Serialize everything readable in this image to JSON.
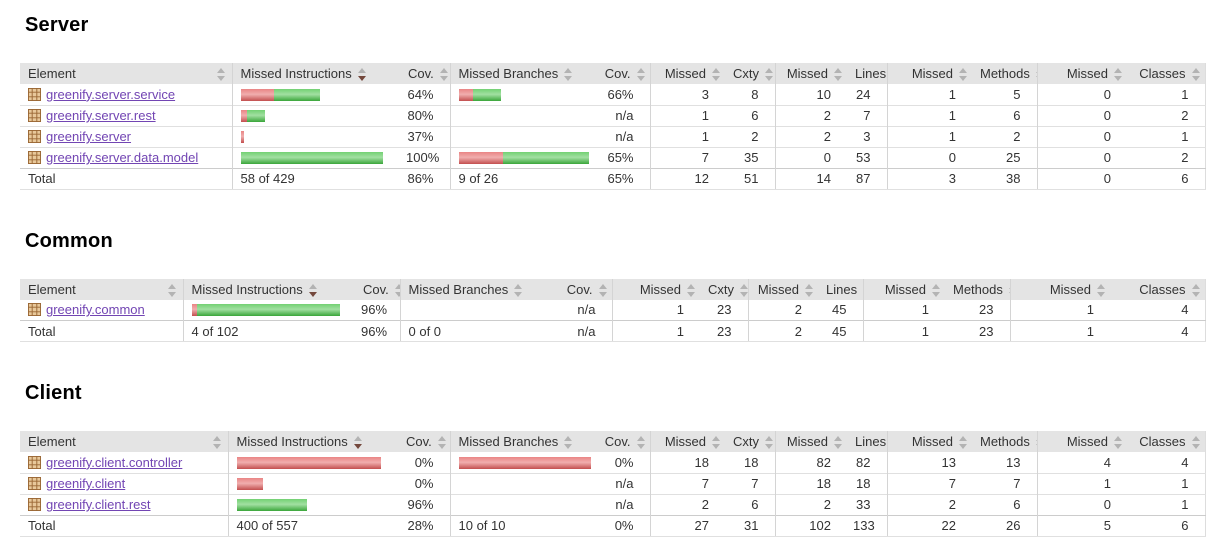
{
  "colors": {
    "header_bg": "#e4e4e4",
    "link": "#7245b3",
    "bar_red": "#e25c5c",
    "bar_green": "#44c144"
  },
  "columns": [
    "Element",
    "Missed Instructions",
    "Cov.",
    "Missed Branches",
    "Cov.",
    "Missed",
    "Cxty",
    "Missed",
    "Lines",
    "Missed",
    "Methods",
    "Missed",
    "Classes"
  ],
  "sections": [
    {
      "title": "Server",
      "sort": {
        "column": "Missed Instructions",
        "direction": "desc"
      },
      "rows": [
        {
          "name": "greenify.server.service",
          "instr_bar": {
            "red": 33,
            "green": 46
          },
          "instr_cov": "64%",
          "branch_bar": {
            "red": 14,
            "green": 28
          },
          "branch_cov": "66%",
          "missed_cxty": 3,
          "cxty": 8,
          "missed_lines": 10,
          "lines": 24,
          "missed_methods": 1,
          "methods": 5,
          "missed_classes": 0,
          "classes": 1
        },
        {
          "name": "greenify.server.rest",
          "instr_bar": {
            "red": 6,
            "green": 18
          },
          "instr_cov": "80%",
          "branch_cov": "n/a",
          "missed_cxty": 1,
          "cxty": 6,
          "missed_lines": 2,
          "lines": 7,
          "missed_methods": 1,
          "methods": 6,
          "missed_classes": 0,
          "classes": 2
        },
        {
          "name": "greenify.server",
          "instr_bar": {
            "red": 3,
            "green": 0
          },
          "instr_cov": "37%",
          "branch_cov": "n/a",
          "missed_cxty": 1,
          "cxty": 2,
          "missed_lines": 2,
          "lines": 3,
          "missed_methods": 1,
          "methods": 2,
          "missed_classes": 0,
          "classes": 1
        },
        {
          "name": "greenify.server.data.model",
          "instr_bar": {
            "red": 0,
            "green": 142
          },
          "instr_cov": "100%",
          "branch_bar": {
            "red": 47,
            "green": 92
          },
          "branch_cov": "65%",
          "missed_cxty": 7,
          "cxty": 35,
          "missed_lines": 0,
          "lines": 53,
          "missed_methods": 0,
          "methods": 25,
          "missed_classes": 0,
          "classes": 2
        }
      ],
      "total": {
        "label": "Total",
        "instructions": "58 of 429",
        "instr_cov": "86%",
        "branches": "9 of 26",
        "branch_cov": "65%",
        "missed_cxty": 12,
        "cxty": 51,
        "missed_lines": 14,
        "lines": 87,
        "missed_methods": 3,
        "methods": 38,
        "missed_classes": 0,
        "classes": 6
      }
    },
    {
      "title": "Common",
      "sort": {
        "column": "Missed Instructions",
        "direction": "desc"
      },
      "rows": [
        {
          "name": "greenify.common",
          "instr_bar": {
            "red": 5,
            "green": 143
          },
          "instr_cov": "96%",
          "branch_cov": "n/a",
          "missed_cxty": 1,
          "cxty": 23,
          "missed_lines": 2,
          "lines": 45,
          "missed_methods": 1,
          "methods": 23,
          "missed_classes": 1,
          "classes": 4
        }
      ],
      "total": {
        "label": "Total",
        "instructions": "4 of 102",
        "instr_cov": "96%",
        "branches": "0 of 0",
        "branch_cov": "n/a",
        "missed_cxty": 1,
        "cxty": 23,
        "missed_lines": 2,
        "lines": 45,
        "missed_methods": 1,
        "methods": 23,
        "missed_classes": 1,
        "classes": 4
      }
    },
    {
      "title": "Client",
      "sort": {
        "column": "Missed Instructions",
        "direction": "desc"
      },
      "rows": [
        {
          "name": "greenify.client.controller",
          "instr_bar": {
            "red": 144,
            "green": 0
          },
          "instr_cov": "0%",
          "branch_bar": {
            "red": 142,
            "green": 0
          },
          "branch_cov": "0%",
          "missed_cxty": 18,
          "cxty": 18,
          "missed_lines": 82,
          "lines": 82,
          "missed_methods": 13,
          "methods": 13,
          "missed_classes": 4,
          "classes": 4
        },
        {
          "name": "greenify.client",
          "instr_bar": {
            "red": 26,
            "green": 0
          },
          "instr_cov": "0%",
          "branch_cov": "n/a",
          "missed_cxty": 7,
          "cxty": 7,
          "missed_lines": 18,
          "lines": 18,
          "missed_methods": 7,
          "methods": 7,
          "missed_classes": 1,
          "classes": 1
        },
        {
          "name": "greenify.client.rest",
          "instr_bar": {
            "red": 0,
            "green": 70
          },
          "instr_cov": "96%",
          "branch_cov": "n/a",
          "missed_cxty": 2,
          "cxty": 6,
          "missed_lines": 2,
          "lines": 33,
          "missed_methods": 2,
          "methods": 6,
          "missed_classes": 0,
          "classes": 1
        }
      ],
      "total": {
        "label": "Total",
        "instructions": "400 of 557",
        "instr_cov": "28%",
        "branches": "10 of 10",
        "branch_cov": "0%",
        "missed_cxty": 27,
        "cxty": 31,
        "missed_lines": 102,
        "lines": 133,
        "missed_methods": 22,
        "methods": 26,
        "missed_classes": 5,
        "classes": 6
      }
    }
  ]
}
